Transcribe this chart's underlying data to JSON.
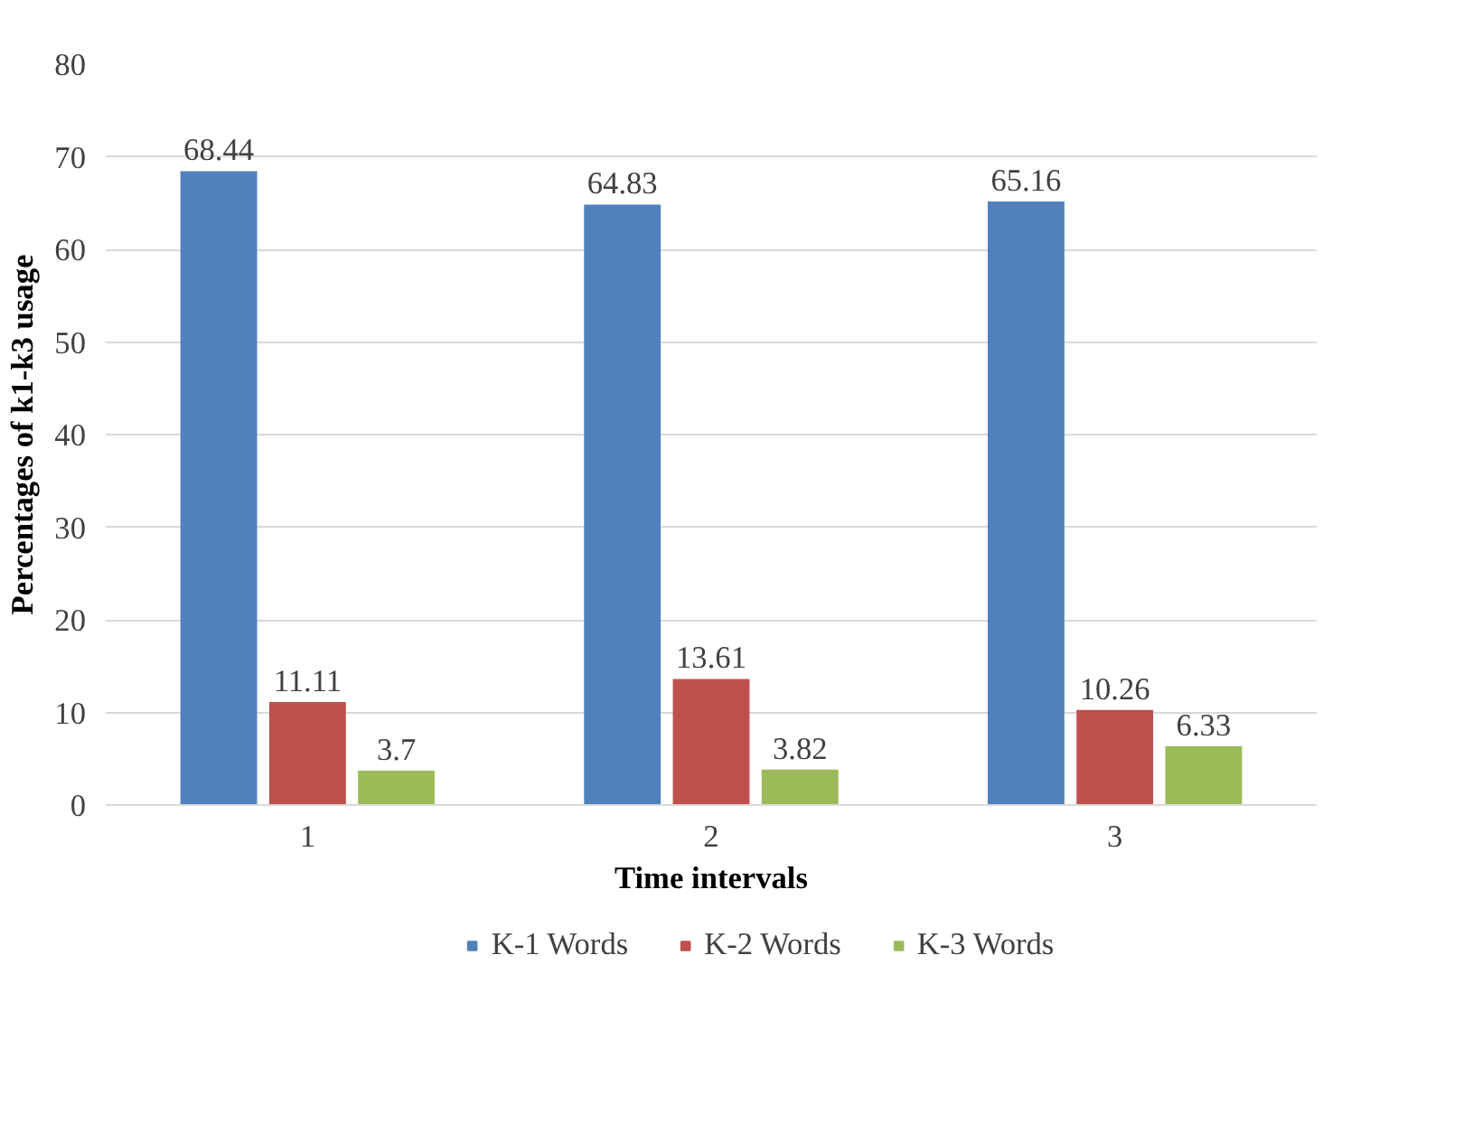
{
  "chart_data": {
    "type": "bar",
    "xlabel": "Time intervals",
    "ylabel": "Percentages of k1-k3 usage",
    "categories": [
      "1",
      "2",
      "3"
    ],
    "series": [
      {
        "name": "K-1 Words",
        "color": "#4f81bd",
        "values": [
          68.44,
          64.83,
          65.16
        ]
      },
      {
        "name": "K-2 Words",
        "color": "#c0504d",
        "values": [
          11.11,
          13.61,
          10.26
        ]
      },
      {
        "name": "K-3 Words",
        "color": "#9bbb59",
        "values": [
          3.7,
          3.82,
          6.33
        ]
      }
    ],
    "ylim": [
      0,
      80
    ],
    "yticks": [
      0,
      10,
      20,
      30,
      40,
      50,
      60,
      70,
      80
    ],
    "grid": "y",
    "legend": "bottom",
    "data_labels": true
  }
}
